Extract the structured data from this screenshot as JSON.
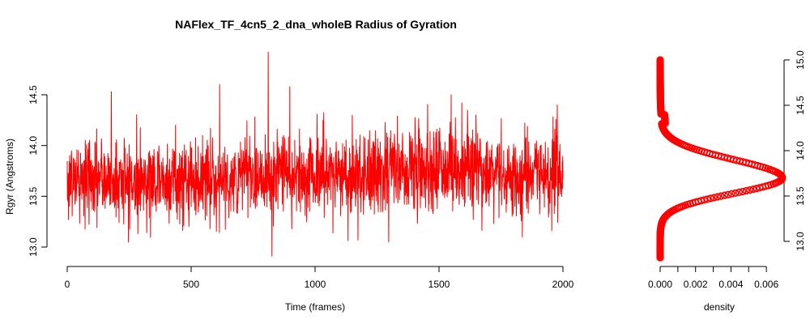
{
  "chart_data": [
    {
      "type": "line",
      "title": "NAFlex_TF_4cn5_2_dna_wholeB Radius of Gyration",
      "xlabel": "Time (frames)",
      "ylabel": "Rgyr (Angstroms)",
      "xlim": [
        0,
        2000
      ],
      "ylim": [
        12.9,
        14.95
      ],
      "x_ticks": [
        0,
        500,
        1000,
        1500,
        2000
      ],
      "y_ticks": [
        13.0,
        13.5,
        14.0,
        14.5
      ],
      "x_tick_labels": [
        "0",
        "500",
        "1000",
        "1500",
        "2000"
      ],
      "y_tick_labels": [
        "13.0",
        "13.5",
        "14.0",
        "14.5"
      ],
      "line_color": "#ff0000",
      "n_frames": 2000,
      "segments": [
        {
          "start": 0,
          "end": 700,
          "mean": 13.66,
          "sd": 0.2
        },
        {
          "start": 700,
          "end": 1300,
          "mean": 13.72,
          "sd": 0.2
        },
        {
          "start": 1300,
          "end": 1700,
          "mean": 13.78,
          "sd": 0.22
        },
        {
          "start": 1700,
          "end": 2000,
          "mean": 13.7,
          "sd": 0.2
        }
      ],
      "spikes": [
        {
          "x": 811,
          "y": 14.92
        },
        {
          "x": 615,
          "y": 14.6
        },
        {
          "x": 898,
          "y": 14.58
        },
        {
          "x": 178,
          "y": 14.53
        },
        {
          "x": 1549,
          "y": 14.5
        },
        {
          "x": 1592,
          "y": 14.42
        },
        {
          "x": 1977,
          "y": 14.4
        },
        {
          "x": 826,
          "y": 12.91
        },
        {
          "x": 1173,
          "y": 13.07
        },
        {
          "x": 1297,
          "y": 13.05
        },
        {
          "x": 1836,
          "y": 13.1
        },
        {
          "x": 247,
          "y": 13.05
        }
      ],
      "grid": false
    },
    {
      "type": "line",
      "xlabel": "density",
      "xlim": [
        0,
        0.007
      ],
      "ylim": [
        12.9,
        14.95
      ],
      "x_ticks": [
        0.0,
        0.001,
        0.002,
        0.003,
        0.004,
        0.005,
        0.006
      ],
      "x_tick_labels": [
        "0.000",
        "0.002",
        "0.004",
        "0.006"
      ],
      "x_tick_label_values": [
        0.0,
        0.002,
        0.004,
        0.006
      ],
      "y_ticks": [
        13.0,
        13.5,
        14.0,
        14.5,
        15.0
      ],
      "y_tick_labels": [
        "13.0",
        "13.5",
        "14.0",
        "14.5",
        "15.0"
      ],
      "y_axis_side": "right",
      "marker": "circle",
      "marker_color": "#ff0000",
      "density_peak": 0.0069,
      "density_mode_y": 13.7,
      "y_range": [
        12.82,
        15.0
      ],
      "grid": false
    }
  ]
}
